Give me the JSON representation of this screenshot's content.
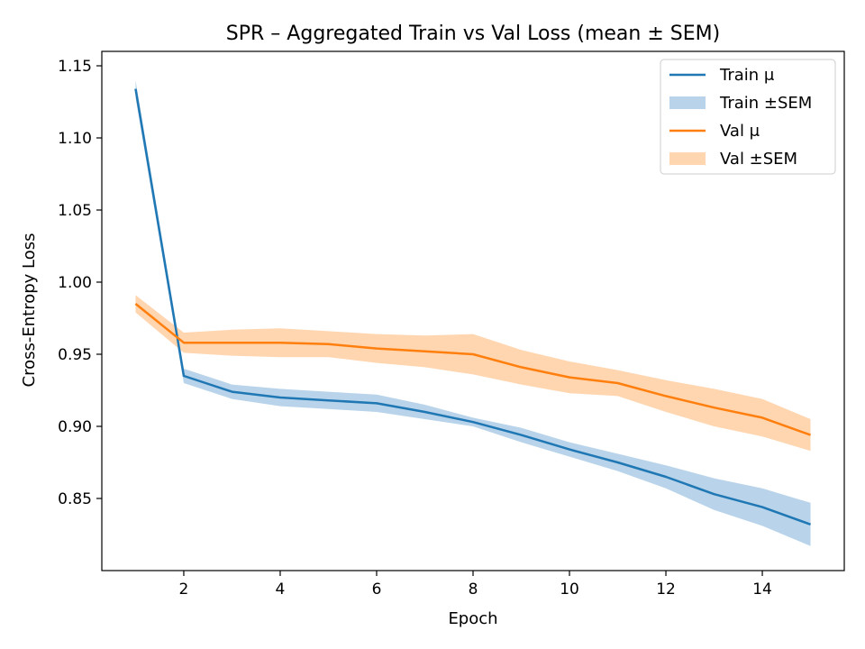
{
  "chart_data": {
    "type": "line",
    "title": "SPR – Aggregated Train vs Val Loss (mean ± SEM)",
    "xlabel": "Epoch",
    "ylabel": "Cross-Entropy Loss",
    "xlim": [
      0.3,
      15.7
    ],
    "ylim": [
      0.8,
      1.16
    ],
    "xticks": [
      2,
      4,
      6,
      8,
      10,
      12,
      14
    ],
    "yticks": [
      0.85,
      0.9,
      0.95,
      1.0,
      1.05,
      1.1,
      1.15
    ],
    "x": [
      1,
      2,
      3,
      4,
      5,
      6,
      7,
      8,
      9,
      10,
      11,
      12,
      13,
      14,
      15
    ],
    "series": [
      {
        "name": "Train μ",
        "band_name": "Train ±SEM",
        "color": "#1f77b4",
        "band_color": "#b9d4ea",
        "values": [
          1.134,
          0.935,
          0.924,
          0.92,
          0.918,
          0.916,
          0.91,
          0.903,
          0.894,
          0.884,
          0.875,
          0.865,
          0.853,
          0.844,
          0.832
        ],
        "sem": [
          0.006,
          0.005,
          0.005,
          0.006,
          0.006,
          0.006,
          0.005,
          0.003,
          0.005,
          0.005,
          0.006,
          0.008,
          0.011,
          0.013,
          0.015
        ]
      },
      {
        "name": "Val μ",
        "band_name": "Val ±SEM",
        "color": "#ff7f0e",
        "band_color": "#ffd6b0",
        "values": [
          0.985,
          0.958,
          0.958,
          0.958,
          0.957,
          0.954,
          0.952,
          0.95,
          0.941,
          0.934,
          0.93,
          0.921,
          0.913,
          0.906,
          0.894
        ],
        "sem": [
          0.006,
          0.007,
          0.009,
          0.01,
          0.009,
          0.01,
          0.011,
          0.014,
          0.012,
          0.011,
          0.009,
          0.011,
          0.013,
          0.013,
          0.011
        ]
      }
    ],
    "legend_position": "top-right",
    "grid": false
  }
}
